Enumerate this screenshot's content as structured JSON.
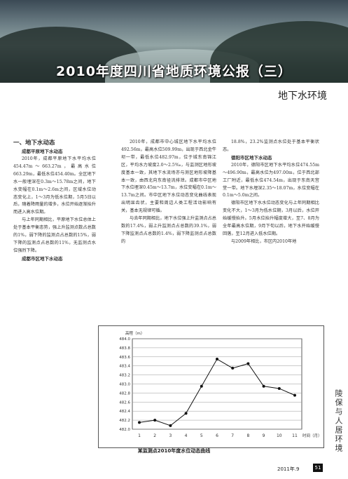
{
  "header": {
    "title": "2010年度四川省地质环境公报（三）",
    "subtitle": "地下水环境"
  },
  "col1": {
    "h_section": "一、地下水动态",
    "h_a": "成都平原地下水动态",
    "p1": "2010年，成都平原地下水平均水位 454.47m～663.27m，最高水位 663.29m，最低水位454.40m。全区地下水一般埋深在0.3m～15.78m之间，地下水变幅在0.1m～2.6m之间，区域水位动态变化上，1～3月为低水位期，5月5日以后，随着降雨量的增多，水位开始逐渐抬升而进入高水位期。",
    "p2": "与上年同期相比，平原地下水位总体上处于基本平衡态势，强上升监测点数占总数的1%，弱下降的监测点占总数的15%，弱下降的监测点占总数的11%，无监测点水位强烈下降。",
    "h_b": "成都市区地下水动态"
  },
  "col2": {
    "p1": "2010年，成都市中心城区地下水平均水位492.56m，最高水位509.99m，出现于西北金牛坝一带，最低水位482.97m，位于城东南锦江区，平均水力坡度2.0～2.5‰，与监测区地形坡度基本一致，其地下水流场亦与测区地形坡降基本一致，由西北向东南径流排泄。成都市中区地下水位埋深0.45m～13.7m，水位变幅在0.1m～13.7m之间。市中区地下水位动态变化曲线表现出明显齿状，主要和周边人类工程活动影响有关，基本无规律可循。",
    "p2": "与去年同期相比，地下水位强上升监测点占总数的17.4%，弱上升监测点占总数的39.1%，弱下降监测点占总数的1.4%，弱下降监测点占总数的"
  },
  "col3": {
    "p1": "18.8%，23.2%监测点水位处于基本平衡状态。",
    "h_c": "德阳市区地下水动态",
    "p2": "2010年，德阳市区地下水平均水位474.55m～496.90m，最高水位为497.00m，位于西北部工厂附近，最低水位474.54m，出现于东南天宫堂一带。地下水埋深2.35～18.07m，水位变幅在0.1m～5.0m之间。",
    "p3": "德阳市区地下水水位动态变化与上年同期相比变化不大，1～3月为低水位期，3月以后，水位开始缓慢抬升。5月水位抬升幅度增大，至7、8月为全年最高水位期，9月下旬以后，地下水开始缓慢回落，至12月进入低水位期。",
    "p4": "与2009年相比，市区内2010年地"
  },
  "chart_data": {
    "type": "line",
    "title": "",
    "ylabel": "高程（m）",
    "xlabel": "时间（月）",
    "x": [
      1,
      2,
      3,
      4,
      5,
      6,
      7,
      8,
      9,
      10,
      11
    ],
    "x_tick_labels": [
      "1",
      "2",
      "3",
      "4",
      "5",
      "6",
      "7",
      "8",
      "9",
      "10",
      "11"
    ],
    "y_ticks": [
      "484.0",
      "483.8",
      "483.6",
      "483.4",
      "483.2",
      "483.0",
      "482.8",
      "482.6",
      "482.4",
      "482.2",
      "482.0"
    ],
    "ylim": [
      482.0,
      484.0
    ],
    "values": [
      482.15,
      482.2,
      482.08,
      482.35,
      482.95,
      483.55,
      483.35,
      483.45,
      482.95,
      482.9,
      482.75
    ],
    "grid": true,
    "caption": "某监测点2010年度水位动态曲线"
  },
  "side_art": "陵保与人居环境",
  "footer": {
    "issue": "2011年.9",
    "page": "51"
  }
}
